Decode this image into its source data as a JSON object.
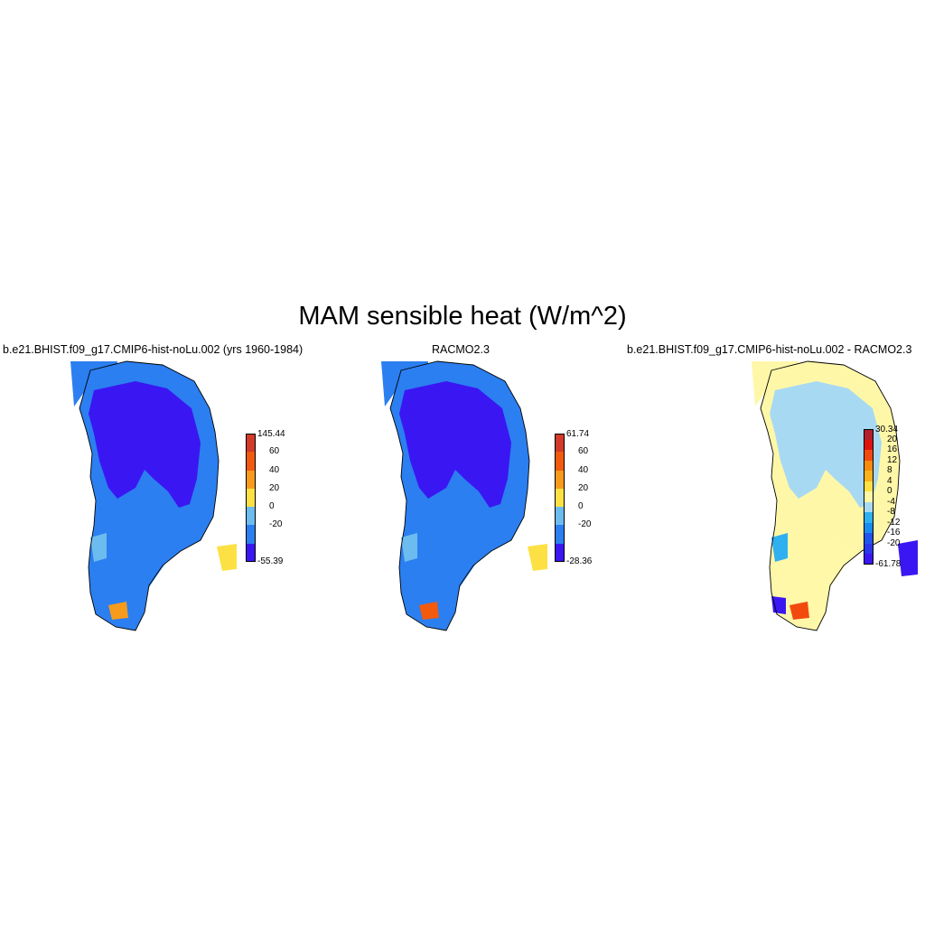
{
  "figure": {
    "title": "MAM sensible heat (W/m^2)"
  },
  "panels": [
    {
      "title": "b.e21.BHIST.f09_g17.CMIP6-hist-noLu.002 (yrs 1960-1984)",
      "colorbar": {
        "colors": [
          "#3a17f2",
          "#2b7ff0",
          "#6cbcf0",
          "#fde144",
          "#f79b1c",
          "#f25a0e",
          "#d23a2a"
        ],
        "labels": [
          "145.44",
          "60",
          "40",
          "20",
          "0",
          "-20",
          "-55.39"
        ]
      },
      "palette": {
        "interior": "#3a17f2",
        "main": "#2b7ff0",
        "light": "#6cbcf0",
        "warm1": "#fde144",
        "warm2": "#f79b1c"
      }
    },
    {
      "title": "RACMO2.3",
      "colorbar": {
        "colors": [
          "#3a17f2",
          "#2b7ff0",
          "#6cbcf0",
          "#fde144",
          "#f79b1c",
          "#f25a0e",
          "#d23a2a"
        ],
        "labels": [
          "61.74",
          "60",
          "40",
          "20",
          "0",
          "-20",
          "-28.36"
        ]
      },
      "palette": {
        "interior": "#3a17f2",
        "main": "#2b7ff0",
        "light": "#6cbcf0",
        "warm1": "#fde144",
        "warm2": "#f25a0e"
      }
    },
    {
      "title": "b.e21.BHIST.f09_g17.CMIP6-hist-noLu.002 - RACMO2.3",
      "colorbar": {
        "colors": [
          "#3a17f2",
          "#2a38ea",
          "#1f55ec",
          "#198bf0",
          "#2fb0f0",
          "#a8d9f2",
          "#fff7a8",
          "#fde144",
          "#fbb21a",
          "#f78b0e",
          "#f24a0e",
          "#e0120e",
          "#b41f2c"
        ],
        "labels": [
          "30.34",
          "20",
          "16",
          "12",
          "8",
          "4",
          "0",
          "-4",
          "-8",
          "-12",
          "-16",
          "-20",
          "-61.78"
        ]
      },
      "palette": {
        "interior": "#a8d9f2",
        "main": "#fff7a8",
        "light": "#2fb0f0",
        "warm1": "#f78b0e",
        "warm2": "#f24a0e",
        "edge": "#3a17f2"
      }
    }
  ]
}
